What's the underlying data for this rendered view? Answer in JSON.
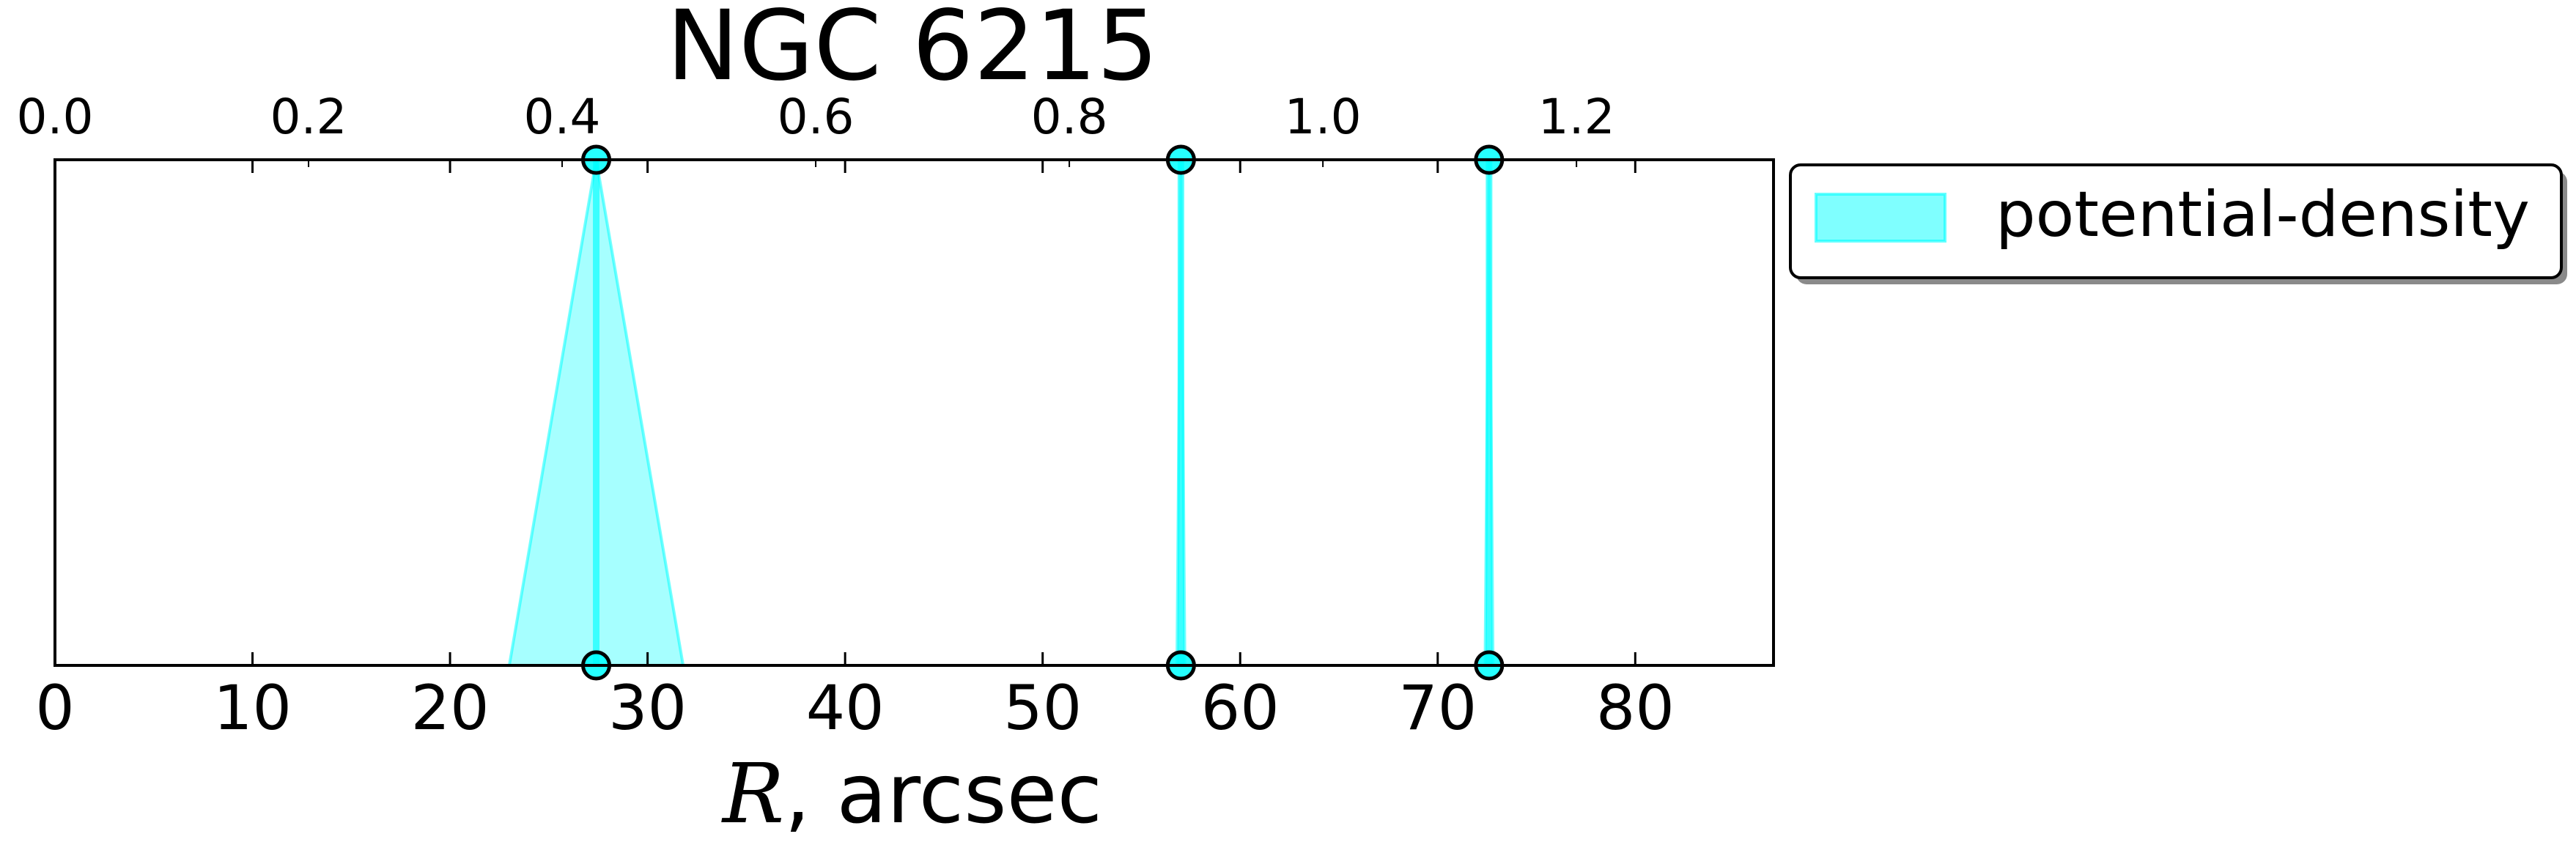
{
  "chart_data": {
    "type": "area",
    "title": "NGC 6215",
    "xlabel_symbol": "R",
    "xlabel_rest": ", arcsec",
    "xlim": [
      0,
      87
    ],
    "xticks": [
      0,
      10,
      20,
      30,
      40,
      50,
      60,
      70,
      80
    ],
    "top_axis": {
      "xlim": [
        0,
        1.3554
      ],
      "ticks": [
        0.0,
        0.2,
        0.4,
        0.6,
        0.8,
        1.0,
        1.2
      ],
      "tick_labels": [
        "0.0",
        "0.2",
        "0.4",
        "0.6",
        "0.8",
        "1.0",
        "1.2"
      ]
    },
    "legend": {
      "placement": "outside-upper-right",
      "entries": [
        "potential-density"
      ]
    },
    "series": [
      {
        "name": "potential-density",
        "color": "#00ffff",
        "markers": [
          27.4,
          57.0,
          72.6
        ],
        "bands": [
          {
            "center": 27.4,
            "low": 23.0,
            "high": 31.8
          },
          {
            "center": 57.0,
            "low": 56.8,
            "high": 57.2
          },
          {
            "center": 72.6,
            "low": 72.4,
            "high": 72.8
          }
        ]
      }
    ]
  }
}
